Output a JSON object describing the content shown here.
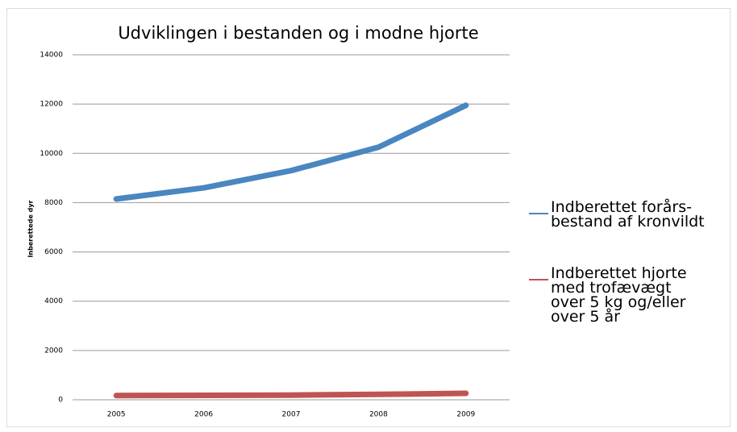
{
  "chart_data": {
    "type": "line",
    "title": "Udviklingen i bestanden og i modne hjorte",
    "y_label": "Inberettede dyr",
    "categories": [
      "2005",
      "2006",
      "2007",
      "2008",
      "2009"
    ],
    "series": [
      {
        "name": "Indberettet forårs-bestand af kronvildt",
        "color": "#4a86c0",
        "values": [
          8150,
          8600,
          9300,
          10250,
          11950
        ]
      },
      {
        "name": "Indberettet hjorte med trofævægt over 5 kg og/eller over 5 år",
        "color": "#be5552",
        "values": [
          170,
          180,
          190,
          220,
          260
        ]
      }
    ],
    "ylim": [
      0,
      14000
    ],
    "yticks": [
      0,
      2000,
      4000,
      6000,
      8000,
      10000,
      12000,
      14000
    ],
    "grid": true,
    "legend": "right"
  }
}
